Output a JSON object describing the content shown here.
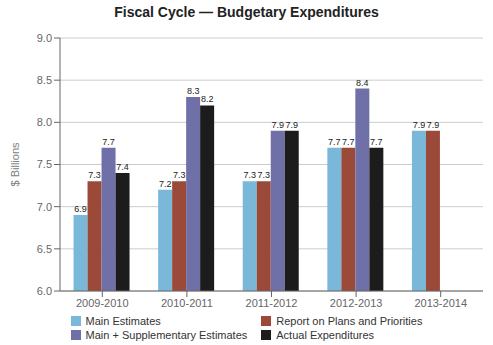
{
  "chart_data": {
    "type": "bar",
    "title": "Fiscal Cycle — Budgetary Expenditures",
    "ylabel": "$ Billions",
    "categories": [
      "2009-2010",
      "2010-2011",
      "2011-2012",
      "2012-2013",
      "2013-2014"
    ],
    "series": [
      {
        "name": "Main Estimates",
        "color": "#7ab8d9",
        "values": [
          6.9,
          7.2,
          7.3,
          7.7,
          7.9
        ]
      },
      {
        "name": "Report on Plans and Priorities",
        "color": "#9b4a3a",
        "values": [
          7.3,
          7.3,
          7.3,
          7.7,
          7.9
        ]
      },
      {
        "name": "Main + Supplementary Estimates",
        "color": "#7070a8",
        "values": [
          7.7,
          8.3,
          7.9,
          8.4,
          null
        ]
      },
      {
        "name": "Actual Expenditures",
        "color": "#1c1c1c",
        "values": [
          7.4,
          8.2,
          7.9,
          7.7,
          null
        ]
      }
    ],
    "ylim": [
      6.0,
      9.0
    ],
    "yticks": [
      {
        "value": 6.0,
        "label": "6.0"
      },
      6.5,
      {
        "value": 7.0,
        "label": "7.0"
      },
      7.5,
      {
        "value": 8.0,
        "label": "8.0"
      },
      8.5,
      {
        "value": 9.0,
        "label": "9.0"
      }
    ],
    "grid": true,
    "legend": "bottom",
    "data_labels": true
  }
}
